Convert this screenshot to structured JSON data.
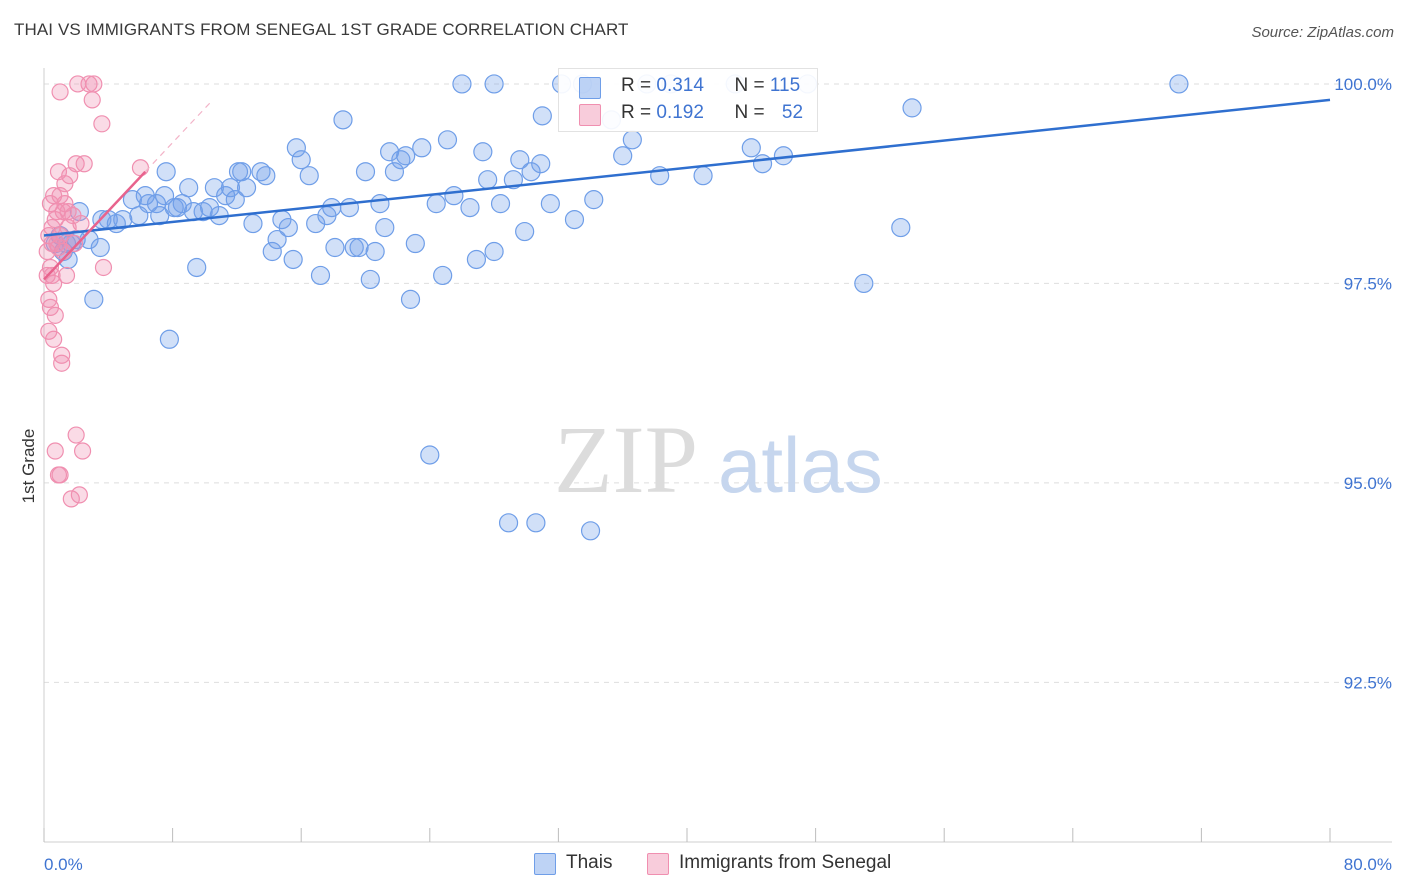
{
  "title": "THAI VS IMMIGRANTS FROM SENEGAL 1ST GRADE CORRELATION CHART",
  "source": "Source: ZipAtlas.com",
  "watermark": {
    "zip": "ZIP",
    "atlas": "atlas"
  },
  "colors": {
    "blue": "#6f9ee8",
    "blue_line": "#2f6fcf",
    "pink": "#f08fb0",
    "pink_line": "#e8638d",
    "axis_label": "#3f74d1"
  },
  "legend": {
    "rows": [
      {
        "r_label": "R =",
        "r_value": "0.314",
        "n_label": "N =",
        "n_value": "115"
      },
      {
        "r_label": "R =",
        "r_value": "0.192",
        "n_label": "N =",
        "n_value": "52"
      }
    ]
  },
  "bottom_legend": {
    "thais": "Thais",
    "senegal": "Immigrants from Senegal"
  },
  "chart_data": {
    "type": "scatter",
    "title": "THAI VS IMMIGRANTS FROM SENEGAL 1ST GRADE CORRELATION CHART",
    "xlabel": "",
    "ylabel": "1st Grade",
    "xlim": [
      0,
      80
    ],
    "ylim": [
      90.5,
      100.3
    ],
    "x_tick_labels": [
      "0.0%",
      "80.0%"
    ],
    "y_ticks": [
      92.5,
      95.0,
      97.5,
      100.0
    ],
    "y_tick_labels": [
      "92.5%",
      "95.0%",
      "97.5%",
      "100.0%"
    ],
    "grid": true,
    "legend_position": "top-center",
    "series": [
      {
        "name": "Thais",
        "color": "#6f9ee8",
        "R": 0.314,
        "N": 115,
        "trend": {
          "x": [
            0,
            80
          ],
          "y": [
            98.1,
            99.8
          ]
        },
        "points": [
          [
            0.7,
            98.0
          ],
          [
            1.0,
            98.1
          ],
          [
            1.2,
            97.9
          ],
          [
            1.4,
            98.0
          ],
          [
            1.5,
            97.8
          ],
          [
            1.7,
            98.0
          ],
          [
            2.0,
            98.05
          ],
          [
            2.2,
            98.4
          ],
          [
            2.8,
            98.05
          ],
          [
            3.1,
            97.3
          ],
          [
            3.5,
            97.95
          ],
          [
            3.6,
            98.3
          ],
          [
            4.0,
            98.3
          ],
          [
            4.5,
            98.25
          ],
          [
            4.9,
            98.3
          ],
          [
            5.5,
            98.55
          ],
          [
            5.9,
            98.35
          ],
          [
            6.3,
            98.6
          ],
          [
            6.5,
            98.5
          ],
          [
            7.0,
            98.5
          ],
          [
            7.2,
            98.35
          ],
          [
            7.5,
            98.6
          ],
          [
            7.6,
            98.9
          ],
          [
            7.8,
            96.8
          ],
          [
            8.1,
            98.45
          ],
          [
            8.3,
            98.45
          ],
          [
            8.6,
            98.5
          ],
          [
            9.0,
            98.7
          ],
          [
            9.3,
            98.4
          ],
          [
            9.5,
            97.7
          ],
          [
            9.9,
            98.4
          ],
          [
            10.3,
            98.45
          ],
          [
            10.6,
            98.7
          ],
          [
            10.9,
            98.35
          ],
          [
            11.3,
            98.6
          ],
          [
            11.6,
            98.7
          ],
          [
            11.9,
            98.55
          ],
          [
            12.1,
            98.9
          ],
          [
            12.3,
            98.9
          ],
          [
            12.6,
            98.7
          ],
          [
            13.0,
            98.25
          ],
          [
            13.5,
            98.9
          ],
          [
            13.8,
            98.85
          ],
          [
            14.2,
            97.9
          ],
          [
            14.5,
            98.05
          ],
          [
            14.8,
            98.3
          ],
          [
            15.2,
            98.2
          ],
          [
            15.5,
            97.8
          ],
          [
            15.7,
            99.2
          ],
          [
            16.0,
            99.05
          ],
          [
            16.5,
            98.85
          ],
          [
            16.9,
            98.25
          ],
          [
            17.2,
            97.6
          ],
          [
            17.6,
            98.35
          ],
          [
            17.9,
            98.45
          ],
          [
            18.1,
            97.95
          ],
          [
            18.6,
            99.55
          ],
          [
            19.0,
            98.45
          ],
          [
            19.3,
            97.95
          ],
          [
            19.6,
            97.95
          ],
          [
            20.0,
            98.9
          ],
          [
            20.3,
            97.55
          ],
          [
            20.6,
            97.9
          ],
          [
            20.9,
            98.5
          ],
          [
            21.2,
            98.2
          ],
          [
            21.5,
            99.15
          ],
          [
            21.8,
            98.9
          ],
          [
            22.2,
            99.05
          ],
          [
            22.5,
            99.1
          ],
          [
            22.8,
            97.3
          ],
          [
            23.1,
            98.0
          ],
          [
            23.5,
            99.2
          ],
          [
            24.0,
            95.35
          ],
          [
            24.4,
            98.5
          ],
          [
            24.8,
            97.6
          ],
          [
            25.1,
            99.3
          ],
          [
            25.5,
            98.6
          ],
          [
            26.0,
            100.0
          ],
          [
            26.5,
            98.45
          ],
          [
            26.9,
            97.8
          ],
          [
            27.3,
            99.15
          ],
          [
            27.6,
            98.8
          ],
          [
            28.0,
            97.9
          ],
          [
            28.4,
            98.5
          ],
          [
            28.9,
            94.5
          ],
          [
            29.2,
            98.8
          ],
          [
            29.6,
            99.05
          ],
          [
            29.9,
            98.15
          ],
          [
            30.3,
            98.9
          ],
          [
            30.6,
            94.5
          ],
          [
            30.9,
            99.0
          ],
          [
            31.5,
            98.5
          ],
          [
            32.2,
            100.0
          ],
          [
            33.0,
            98.3
          ],
          [
            33.5,
            100.0
          ],
          [
            34.2,
            98.55
          ],
          [
            34.0,
            94.4
          ],
          [
            35.3,
            99.55
          ],
          [
            36.0,
            99.1
          ],
          [
            36.6,
            99.3
          ],
          [
            37.5,
            100.0
          ],
          [
            38.3,
            98.85
          ],
          [
            41.0,
            98.85
          ],
          [
            44.0,
            99.2
          ],
          [
            44.7,
            99.0
          ],
          [
            47.5,
            100.0
          ],
          [
            51.0,
            97.5
          ],
          [
            53.3,
            98.2
          ],
          [
            54.0,
            99.7
          ],
          [
            70.6,
            100.0
          ],
          [
            46.0,
            99.1
          ],
          [
            43.0,
            100.0
          ],
          [
            39.0,
            100.0
          ],
          [
            31.0,
            99.6
          ],
          [
            28.0,
            100.0
          ]
        ]
      },
      {
        "name": "Immigrants from Senegal",
        "color": "#f08fb0",
        "R": 0.192,
        "N": 52,
        "trend": {
          "x": [
            0,
            6.3
          ],
          "y": [
            97.55,
            98.9
          ]
        },
        "points": [
          [
            0.2,
            97.9
          ],
          [
            0.2,
            97.6
          ],
          [
            0.3,
            98.1
          ],
          [
            0.3,
            97.3
          ],
          [
            0.3,
            96.9
          ],
          [
            0.4,
            98.5
          ],
          [
            0.4,
            97.7
          ],
          [
            0.4,
            97.2
          ],
          [
            0.5,
            98.2
          ],
          [
            0.5,
            98.0
          ],
          [
            0.6,
            98.6
          ],
          [
            0.6,
            97.5
          ],
          [
            0.6,
            96.8
          ],
          [
            0.7,
            98.3
          ],
          [
            0.7,
            97.1
          ],
          [
            0.7,
            95.4
          ],
          [
            0.8,
            98.4
          ],
          [
            0.8,
            98.0
          ],
          [
            0.9,
            98.9
          ],
          [
            0.9,
            95.1
          ],
          [
            1.0,
            98.6
          ],
          [
            1.0,
            98.1
          ],
          [
            1.0,
            99.9
          ],
          [
            1.1,
            96.6
          ],
          [
            1.1,
            96.5
          ],
          [
            1.2,
            98.4
          ],
          [
            1.2,
            97.9
          ],
          [
            1.3,
            98.5
          ],
          [
            1.3,
            98.75
          ],
          [
            1.4,
            97.6
          ],
          [
            1.5,
            98.2
          ],
          [
            1.6,
            98.85
          ],
          [
            1.7,
            94.8
          ],
          [
            1.8,
            98.35
          ],
          [
            1.9,
            98.0
          ],
          [
            2.0,
            99.0
          ],
          [
            2.0,
            95.6
          ],
          [
            2.1,
            100.0
          ],
          [
            2.2,
            94.85
          ],
          [
            2.3,
            98.25
          ],
          [
            2.4,
            95.4
          ],
          [
            2.5,
            99.0
          ],
          [
            2.8,
            100.0
          ],
          [
            3.0,
            99.8
          ],
          [
            3.1,
            100.0
          ],
          [
            3.6,
            99.5
          ],
          [
            3.7,
            97.7
          ],
          [
            6.0,
            98.95
          ],
          [
            1.0,
            95.1
          ],
          [
            0.5,
            97.6
          ],
          [
            0.9,
            97.95
          ],
          [
            1.5,
            98.4
          ]
        ]
      }
    ]
  }
}
